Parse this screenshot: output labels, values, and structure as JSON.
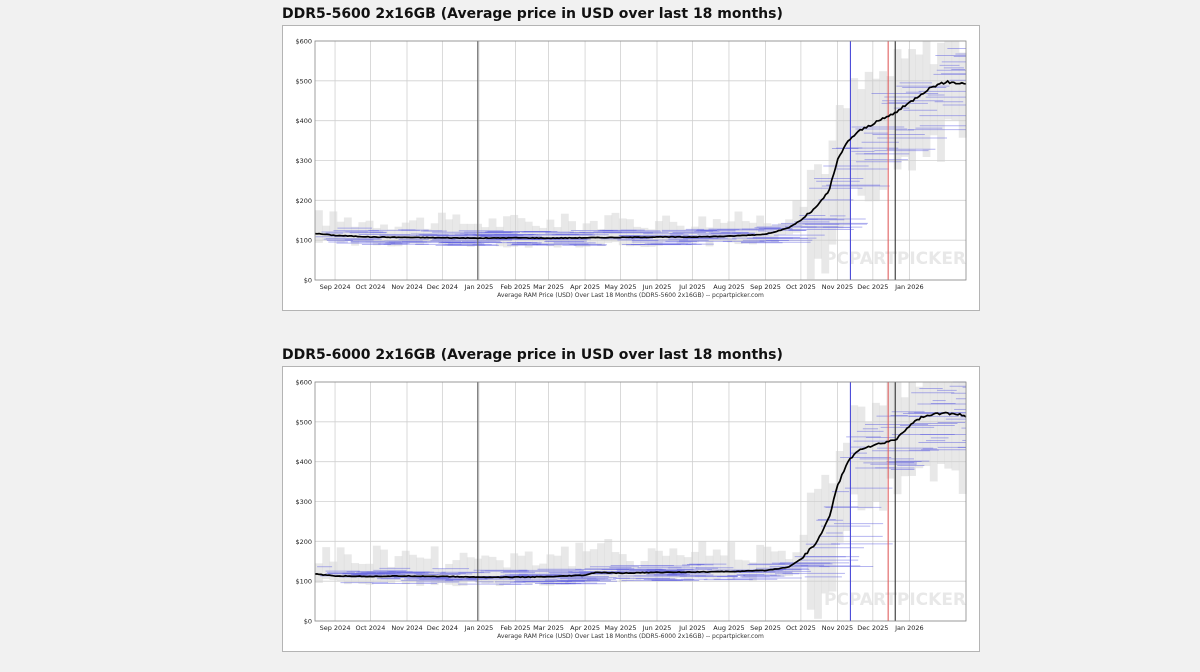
{
  "charts": [
    {
      "heading": "DDR5-5600 2x16GB (Average price in USD over last 18 months)",
      "caption": "Average RAM Price (USD) Over Last 18 Months (DDR5-5600 2x16GB) -- pcpartpicker.com",
      "watermark": "PCPARTPICKER"
    },
    {
      "heading": "DDR5-6000 2x16GB (Average price in USD over last 18 months)",
      "caption": "Average RAM Price (USD) Over Last 18 Months (DDR5-6000 2x16GB) -- pcpartpicker.com",
      "watermark": "PCPARTPICKER"
    }
  ],
  "chart_data": [
    {
      "type": "line",
      "title": "DDR5-5600 2x16GB (Average price in USD over last 18 months)",
      "xlabel": "Average RAM Price (USD) Over Last 18 Months (DDR5-5600 2x16GB) -- pcpartpicker.com",
      "ylabel": "",
      "x_tick_labels": [
        "Sep 2024",
        "Oct 2024",
        "Nov 2024",
        "Dec 2024",
        "Jan 2025",
        "Feb 2025",
        "Mar 2025",
        "Apr 2025",
        "May 2025",
        "Jun 2025",
        "Jul 2025",
        "Aug 2025",
        "Sep 2025",
        "Oct 2025",
        "Nov 2025",
        "Dec 2025",
        "Jan 2026"
      ],
      "y_tick_labels": [
        "$0",
        "$100",
        "$200",
        "$300",
        "$400",
        "$500",
        "$600"
      ],
      "ylim": [
        0,
        600
      ],
      "xlim": [
        "2024-08-15",
        "2026-02-18"
      ],
      "grid": true,
      "series": [
        {
          "values_x": [
            "2024-08-15",
            "2024-09-01",
            "2024-10-01",
            "2024-11-01",
            "2024-12-01",
            "2025-01-01",
            "2025-02-01",
            "2025-03-01",
            "2025-04-01",
            "2025-05-01",
            "2025-06-01",
            "2025-07-01",
            "2025-08-01",
            "2025-09-01",
            "2025-09-20",
            "2025-10-01",
            "2025-10-15",
            "2025-10-25",
            "2025-11-01",
            "2025-11-10",
            "2025-11-20",
            "2025-12-01",
            "2025-12-10",
            "2025-12-20",
            "2026-01-01",
            "2026-01-10",
            "2026-01-20",
            "2026-02-01",
            "2026-02-18"
          ],
          "values": [
            117,
            112,
            108,
            107,
            106,
            105,
            106,
            105,
            106,
            107,
            108,
            108,
            110,
            115,
            130,
            150,
            185,
            225,
            300,
            350,
            375,
            392,
            405,
            420,
            445,
            465,
            485,
            497,
            493
          ],
          "color": "#000000"
        }
      ],
      "vertical_lines": [
        {
          "x": "2024-12-31",
          "color": "#666666"
        },
        {
          "x": "2025-11-12",
          "color": "#4a4ad8"
        },
        {
          "x": "2025-12-14",
          "color": "#e06060"
        },
        {
          "x": "2025-12-20",
          "color": "#333333"
        }
      ]
    },
    {
      "type": "line",
      "title": "DDR5-6000 2x16GB (Average price in USD over last 18 months)",
      "xlabel": "Average RAM Price (USD) Over Last 18 Months (DDR5-6000 2x16GB) -- pcpartpicker.com",
      "ylabel": "",
      "x_tick_labels": [
        "Sep 2024",
        "Oct 2024",
        "Nov 2024",
        "Dec 2024",
        "Jan 2025",
        "Feb 2025",
        "Mar 2025",
        "Apr 2025",
        "May 2025",
        "Jun 2025",
        "Jul 2025",
        "Aug 2025",
        "Sep 2025",
        "Oct 2025",
        "Nov 2025",
        "Dec 2025",
        "Jan 2026"
      ],
      "y_tick_labels": [
        "$0",
        "$100",
        "$200",
        "$300",
        "$400",
        "$500",
        "$600"
      ],
      "ylim": [
        0,
        600
      ],
      "xlim": [
        "2024-08-15",
        "2026-02-18"
      ],
      "grid": true,
      "series": [
        {
          "values_x": [
            "2024-08-15",
            "2024-09-01",
            "2024-10-01",
            "2024-11-01",
            "2024-12-01",
            "2025-01-01",
            "2025-02-01",
            "2025-03-01",
            "2025-04-01",
            "2025-04-10",
            "2025-05-01",
            "2025-06-01",
            "2025-07-01",
            "2025-08-01",
            "2025-09-01",
            "2025-09-20",
            "2025-10-01",
            "2025-10-15",
            "2025-10-25",
            "2025-11-01",
            "2025-11-10",
            "2025-11-20",
            "2025-12-01",
            "2025-12-10",
            "2025-12-20",
            "2026-01-01",
            "2026-01-10",
            "2026-01-20",
            "2026-02-01",
            "2026-02-18"
          ],
          "values": [
            118,
            113,
            112,
            113,
            112,
            110,
            110,
            111,
            115,
            122,
            120,
            122,
            123,
            124,
            127,
            135,
            155,
            200,
            260,
            340,
            400,
            432,
            440,
            447,
            455,
            490,
            510,
            518,
            522,
            515
          ],
          "color": "#000000"
        }
      ],
      "vertical_lines": [
        {
          "x": "2024-12-31",
          "color": "#666666"
        },
        {
          "x": "2025-11-12",
          "color": "#4a4ad8"
        },
        {
          "x": "2025-12-14",
          "color": "#e06060"
        },
        {
          "x": "2025-12-20",
          "color": "#333333"
        }
      ]
    }
  ]
}
